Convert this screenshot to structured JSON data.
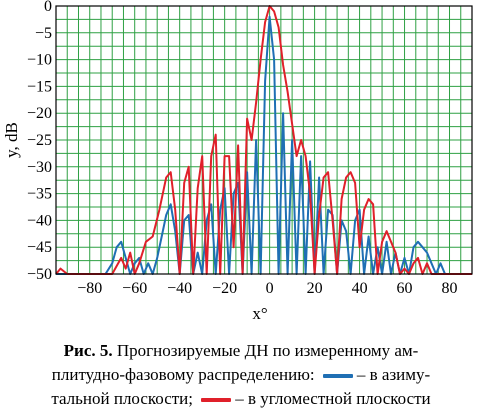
{
  "caption": {
    "label": "Рис. 5.",
    "line1": "Прогнозируемые ДН по измеренному ам-",
    "line2a": "плитудно-фазовому распределению:",
    "line2b": "– в азиму-",
    "line3a": "тальной плоскости;",
    "line3b": "– в угломестной плоскости"
  },
  "colors": {
    "azimuth": "#1f6fb4",
    "elevation": "#e0202a",
    "grid": "#2ea043"
  },
  "chart_data": {
    "type": "line",
    "xlabel": "x°",
    "ylabel": "y, dB",
    "xlim": [
      -95,
      90
    ],
    "ylim": [
      -50,
      0
    ],
    "xticks": [
      -80,
      -60,
      -40,
      -20,
      0,
      20,
      40,
      60,
      80
    ],
    "yticks": [
      0,
      -5,
      -10,
      -15,
      -20,
      -25,
      -30,
      -35,
      -40,
      -45,
      -50
    ],
    "grid": true,
    "series": [
      {
        "color": "#1f6fb4",
        "x": [
          -95,
          -73,
          -70,
          -68,
          -66,
          -64,
          -62,
          -60,
          -58,
          -56,
          -54,
          -52,
          -50,
          -48,
          -46,
          -44,
          -42,
          -40,
          -38,
          -36,
          -34,
          -32,
          -30,
          -28,
          -26,
          -24,
          -22,
          -20,
          -18,
          -16,
          -14,
          -12,
          -10,
          -8,
          -6,
          -4,
          -2,
          0,
          2,
          4,
          6,
          8,
          10,
          12,
          14,
          16,
          18,
          20,
          22,
          24,
          26,
          28,
          30,
          32,
          34,
          36,
          38,
          40,
          42,
          44,
          46,
          48,
          50,
          52,
          54,
          56,
          58,
          60,
          62,
          64,
          66,
          68,
          70,
          72,
          74,
          76,
          78,
          90
        ],
        "y": [
          -50,
          -50,
          -48,
          -45,
          -44,
          -47,
          -50,
          -48,
          -47,
          -50,
          -48,
          -50,
          -47,
          -43,
          -39,
          -37,
          -42,
          -50,
          -40,
          -39,
          -50,
          -46,
          -50,
          -40,
          -37,
          -50,
          -38,
          -34,
          -50,
          -35,
          -33,
          -50,
          -31,
          -50,
          -25,
          -50,
          -14,
          -2,
          -10,
          -50,
          -20,
          -50,
          -25,
          -50,
          -28,
          -50,
          -29,
          -50,
          -32,
          -50,
          -38,
          -39,
          -50,
          -40,
          -42,
          -50,
          -40,
          -38,
          -50,
          -43,
          -50,
          -45,
          -50,
          -44,
          -50,
          -46,
          -50,
          -47,
          -50,
          -45,
          -44,
          -45,
          -46,
          -48,
          -50,
          -48,
          -50,
          -50
        ]
      },
      {
        "color": "#e0202a",
        "x": [
          -95,
          -93,
          -90,
          -86,
          -80,
          -70,
          -66,
          -64,
          -62,
          -60,
          -58,
          -55,
          -52,
          -49,
          -46,
          -44,
          -42,
          -40,
          -38,
          -36,
          -34,
          -32,
          -30,
          -28,
          -26,
          -24,
          -22,
          -20,
          -18,
          -16,
          -14,
          -12,
          -10,
          -8,
          -6,
          -4,
          -2,
          0,
          2,
          4,
          6,
          8,
          10,
          12,
          14,
          16,
          18,
          20,
          22,
          24,
          26,
          28,
          30,
          32,
          34,
          36,
          38,
          40,
          42,
          44,
          46,
          48,
          50,
          52,
          54,
          56,
          58,
          60,
          62,
          64,
          66,
          68,
          70,
          72,
          90
        ],
        "y": [
          -50,
          -49,
          -50,
          -50,
          -50,
          -50,
          -47,
          -49,
          -46,
          -50,
          -48,
          -44,
          -43,
          -38,
          -32,
          -31,
          -38,
          -50,
          -33,
          -30,
          -50,
          -34,
          -28,
          -50,
          -28,
          -24,
          -50,
          -28,
          -28,
          -45,
          -26,
          -50,
          -21,
          -25,
          -18,
          -10,
          -3,
          0,
          -1,
          -4,
          -11,
          -16,
          -22,
          -28,
          -25,
          -28,
          -35,
          -50,
          -39,
          -32,
          -31,
          -40,
          -50,
          -36,
          -32,
          -31,
          -33,
          -45,
          -38,
          -36,
          -37,
          -50,
          -44,
          -42,
          -44,
          -46,
          -50,
          -49,
          -50,
          -48,
          -47,
          -50,
          -48,
          -50,
          -50
        ]
      }
    ]
  }
}
